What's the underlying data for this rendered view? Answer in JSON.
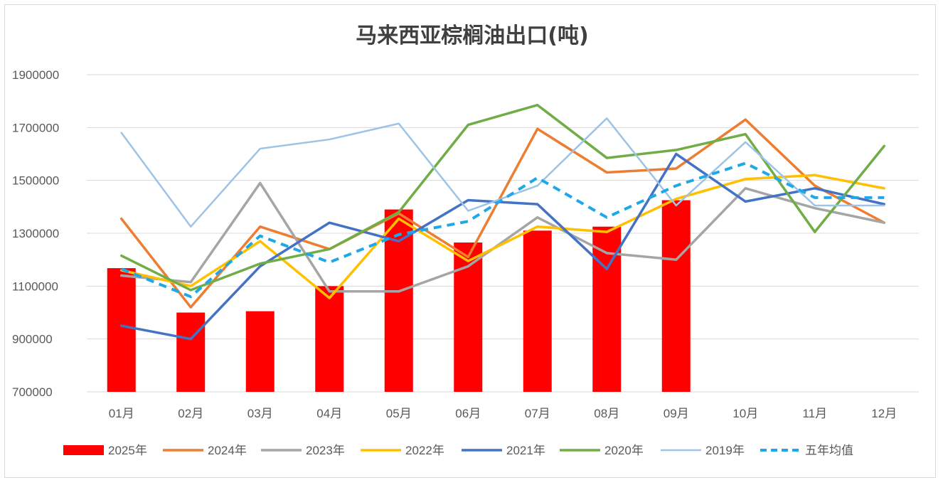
{
  "chart_data": {
    "type": "bar+line",
    "title": "马来西亚棕榈油出口(吨)",
    "xlabel": "",
    "ylabel": "",
    "ylim": [
      700000,
      1900000
    ],
    "yticks": [
      700000,
      900000,
      1100000,
      1300000,
      1500000,
      1700000,
      1900000
    ],
    "ytick_labels": [
      "700000",
      "900000",
      "1100000",
      "1300000",
      "1500000",
      "1700000",
      "1900000"
    ],
    "grid": true,
    "legend_position": "bottom",
    "categories": [
      "01月",
      "02月",
      "03月",
      "04月",
      "05月",
      "06月",
      "07月",
      "08月",
      "09月",
      "10月",
      "11月",
      "12月"
    ],
    "series": [
      {
        "name": "2025年",
        "kind": "bar",
        "color": "#ff0000",
        "values": [
          1168000,
          1000000,
          1005000,
          1100000,
          1390000,
          1265000,
          1310000,
          1325000,
          1425000,
          null,
          null,
          null
        ]
      },
      {
        "name": "2024年",
        "kind": "line",
        "color": "#ed7d31",
        "dash": false,
        "width": 3.5,
        "values": [
          1355000,
          1020000,
          1325000,
          1240000,
          1375000,
          1210000,
          1695000,
          1530000,
          1545000,
          1730000,
          1480000,
          1340000
        ]
      },
      {
        "name": "2023年",
        "kind": "line",
        "color": "#a5a5a5",
        "dash": false,
        "width": 3.5,
        "values": [
          1140000,
          1115000,
          1490000,
          1080000,
          1080000,
          1175000,
          1360000,
          1225000,
          1200000,
          1470000,
          1395000,
          1340000
        ]
      },
      {
        "name": "2022年",
        "kind": "line",
        "color": "#ffc000",
        "dash": false,
        "width": 3.5,
        "values": [
          1160000,
          1100000,
          1270000,
          1055000,
          1355000,
          1195000,
          1325000,
          1305000,
          1430000,
          1505000,
          1520000,
          1470000
        ]
      },
      {
        "name": "2021年",
        "kind": "line",
        "color": "#4472c4",
        "dash": false,
        "width": 3.5,
        "values": [
          950000,
          900000,
          1175000,
          1340000,
          1270000,
          1425000,
          1410000,
          1165000,
          1600000,
          1420000,
          1470000,
          1410000
        ]
      },
      {
        "name": "2020年",
        "kind": "line",
        "color": "#70ad47",
        "dash": false,
        "width": 3.5,
        "values": [
          1215000,
          1085000,
          1185000,
          1240000,
          1380000,
          1710000,
          1785000,
          1585000,
          1615000,
          1675000,
          1305000,
          1630000
        ]
      },
      {
        "name": "2019年",
        "kind": "line",
        "color": "#9dc3e6",
        "dash": false,
        "width": 2.5,
        "values": [
          1680000,
          1325000,
          1620000,
          1655000,
          1715000,
          1385000,
          1480000,
          1735000,
          1405000,
          1645000,
          1405000,
          1405000
        ]
      },
      {
        "name": "五年均值",
        "kind": "line",
        "color": "#1fa8e8",
        "dash": true,
        "width": 4,
        "values": [
          1165000,
          1060000,
          1290000,
          1190000,
          1295000,
          1345000,
          1510000,
          1360000,
          1480000,
          1565000,
          1435000,
          1435000
        ]
      }
    ]
  }
}
